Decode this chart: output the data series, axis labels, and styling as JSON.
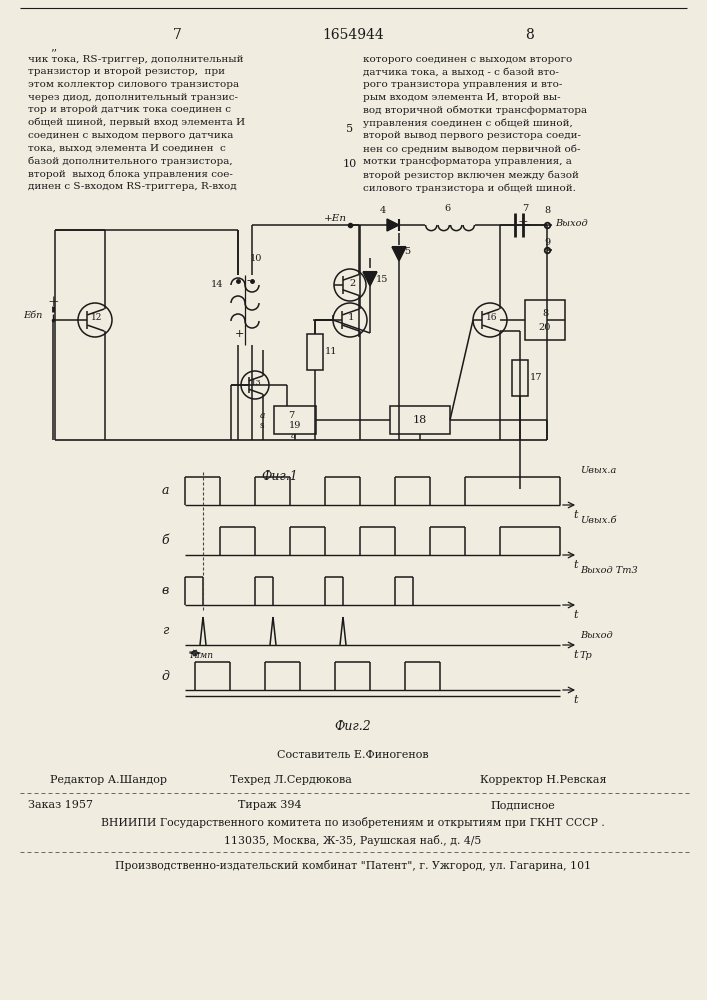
{
  "page_num_left": "7",
  "page_num_center": "1654944",
  "page_num_right": "8",
  "text_left": "чик тока, RS-триггер, дополнительный\nтранзистор и второй резистор,  при\nэтом коллектор силового транзистора\nчерез диод, дополнительный транзис-\nтор и второй датчик тока соединен с\nобщей шиной, первый вход элемента И\nсоединен с выходом первого датчика\nтока, выход элемента И соединен  с\nбазой дополнительного транзистора,\nвторой  выход блока управления сое-\nдинен с S-входом RS-триггера, R-вход",
  "text_right": "которого соединен с выходом второго\nдатчика тока, а выход - с базой вто-\nрого транзистора управления и вто-\nрым входом элемента И, второй вы-\nвод вторичной обмотки трансформатора\nуправления соединен с общей шиной,\nвторой вывод первого резистора соеди-\nнен со средним выводом первичной об-\nмотки трансформатора управления, а\nвторой резистор включен между базой\nсилового транзистора и общей шиной.",
  "fig1_caption": "Фиг.1",
  "fig2_caption": "Фиг.2",
  "footer_line3": "ВНИИПИ Государственного комитета по изобретениям и открытиям при ГКНТ СССР .",
  "footer_line4": "113035, Москва, Ж-35, Раушская наб., д. 4/5",
  "footer_line5": "Производственно-издательский комбинат \"Патент\", г. Ужгород, ул. Гагарина, 101",
  "bg_color": "#f0ece0",
  "text_color": "#1a1a1a",
  "line_color": "#1a1a1a"
}
